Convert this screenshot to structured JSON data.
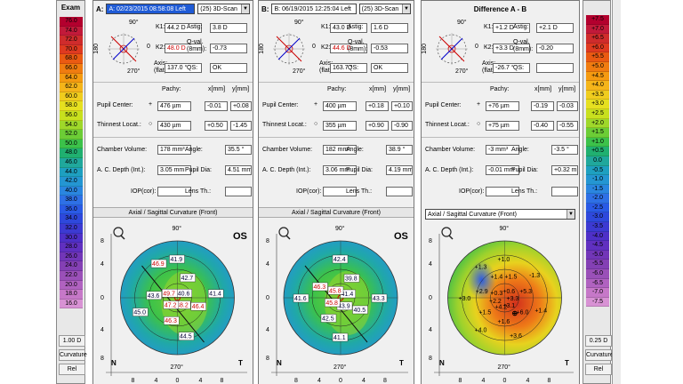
{
  "scale_left": {
    "title": "Exam",
    "values": [
      "76.0",
      "74.0",
      "72.0",
      "70.0",
      "68.0",
      "66.0",
      "64.0",
      "62.0",
      "60.0",
      "58.0",
      "56.0",
      "54.0",
      "52.0",
      "50.0",
      "48.0",
      "46.0",
      "44.0",
      "42.0",
      "40.0",
      "38.0",
      "36.0",
      "34.0",
      "32.0",
      "30.0",
      "28.0",
      "26.0",
      "24.0",
      "22.0",
      "20.0",
      "18.0",
      "16.0"
    ],
    "colors": [
      "#b3002e",
      "#c21a3a",
      "#cf2c2c",
      "#df3a20",
      "#ea5a12",
      "#f07c10",
      "#f59a10",
      "#f5b51a",
      "#f0cd1e",
      "#e6e020",
      "#c8e01e",
      "#9fd82a",
      "#6ccd36",
      "#3cc24a",
      "#20b070",
      "#20a89c",
      "#1ea0c0",
      "#2496d2",
      "#2a86e0",
      "#2e70e6",
      "#2a5ae6",
      "#2e48dc",
      "#3c3ad2",
      "#4e30c8",
      "#6030c0",
      "#7236b8",
      "#8440b4",
      "#9a50b8",
      "#b062c0",
      "#c678c8",
      "#d892d4"
    ],
    "step": "1.00 D",
    "mode": "Curvature",
    "ref": "Rel"
  },
  "scale_right": {
    "values": [
      "+7.5",
      "+7.0",
      "+6.5",
      "+6.0",
      "+5.5",
      "+5.0",
      "+4.5",
      "+4.0",
      "+3.5",
      "+3.0",
      "+2.5",
      "+2.0",
      "+1.5",
      "+1.0",
      "+0.5",
      "0.0",
      "-0.5",
      "-1.0",
      "-1.5",
      "-2.0",
      "-2.5",
      "-3.0",
      "-3.5",
      "-4.0",
      "-4.5",
      "-5.0",
      "-5.5",
      "-6.0",
      "-6.5",
      "-7.0",
      "-7.5"
    ],
    "colors": [
      "#b3002e",
      "#c21a3a",
      "#cf2c2c",
      "#df3a20",
      "#ea5a12",
      "#f07c10",
      "#f59a10",
      "#f5b51a",
      "#f0cd1e",
      "#e6e020",
      "#c8e01e",
      "#9fd82a",
      "#6ccd36",
      "#3cc24a",
      "#20b070",
      "#20a89c",
      "#1ea0c0",
      "#2496d2",
      "#2a86e0",
      "#2e70e6",
      "#2a5ae6",
      "#2e48dc",
      "#3c3ad2",
      "#4e30c8",
      "#6030c0",
      "#7236b8",
      "#8440b4",
      "#9a50b8",
      "#b062c0",
      "#c678c8",
      "#d892d4"
    ],
    "step": "0.25 D",
    "mode": "Curvature",
    "ref": "Rel"
  },
  "labels": {
    "k1": "K1:",
    "k2": "K2:",
    "astig": "Astig:",
    "qval": "Q-val.",
    "qval2": "(8mm):",
    "axis": "Axis:",
    "axis2": "(flat)",
    "qs": "QS:",
    "pachy": "Pachy:",
    "xmm": "x[mm]",
    "ymm": "y[mm]",
    "pupil": "Pupil Center:",
    "thin": "Thinnest Locat.:",
    "chamber": "Chamber Volume:",
    "angle": "Angle:",
    "acd": "A. C. Depth (Int.):",
    "pupil_dia": "Pupil Dia:",
    "iop": "IOP(cor):",
    "lens": "Lens Th.:",
    "map_title": "Axial / Sagittal Curvature (Front)",
    "os": "OS",
    "deg90": "90°",
    "deg270": "270°",
    "deg0": "0",
    "deg180": "180",
    "n": "N",
    "t": "T",
    "ticks_x": [
      "8",
      "4",
      "0",
      "4",
      "8"
    ],
    "ticks_y": [
      "8",
      "4",
      "0",
      "4",
      "8"
    ]
  },
  "panel_a": {
    "label": "A:",
    "exam": "A: 02/23/2015  08:58:08  Left",
    "scan": "(25) 3D-Scan",
    "k1": "44.2 D",
    "k2": "48.0 D",
    "astig": "3.8 D",
    "qval": "-0.73",
    "axis": "137.0 °",
    "qs": "OK",
    "pupil_pachy": "476 µm",
    "pupil_x": "-0.01",
    "pupil_y": "+0.08",
    "thin_pachy": "430 µm",
    "thin_x": "+0.50",
    "thin_y": "-1.45",
    "chamber": "178 mm³",
    "angle": "35.5 °",
    "acd": "3.05 mm",
    "pupil_dia": "4.51 mm",
    "iop": "",
    "lens": "",
    "map_values": [
      "41.9",
      "42.7",
      "40.6",
      "41.4",
      "46.4",
      "48.2",
      "44.5",
      "46.3",
      "47.2",
      "45.0",
      "43.6",
      "49.7",
      "46.9"
    ]
  },
  "panel_b": {
    "label": "B:",
    "exam": "B: 06/19/2015  12:25:04  Left",
    "scan": "(25) 3D-Scan",
    "k1": "43.0 D",
    "k2": "44.6 D",
    "astig": "1.6 D",
    "qval": "-0.53",
    "axis": "163.7 °",
    "qs": "OK",
    "pupil_pachy": "400 µm",
    "pupil_x": "+0.18",
    "pupil_y": "+0.10",
    "thin_pachy": "355 µm",
    "thin_x": "+0.90",
    "thin_y": "-0.90",
    "chamber": "182 mm³",
    "angle": "38.9 °",
    "acd": "3.06 mm",
    "pupil_dia": "4.19 mm",
    "iop": "",
    "lens": "",
    "map_values": [
      "42.4",
      "39.8",
      "41.4",
      "43.3",
      "40.5",
      "43.9",
      "41.1",
      "42.5",
      "45.8",
      "41.6",
      "46.3",
      "45.8"
    ]
  },
  "panel_diff": {
    "title": "Difference A - B",
    "k1": "+1.2 D",
    "k2": "+3.3 D",
    "astig": "+2.1 D",
    "qval": "-0.20",
    "axis": "-26.7 °",
    "qs": "",
    "pupil_pachy": "+76 µm",
    "pupil_x": "-0.19",
    "pupil_y": "-0.03",
    "thin_pachy": "+75 µm",
    "thin_x": "-0.40",
    "thin_y": "-0.55",
    "chamber": "-3 mm³",
    "angle": "-3.5 °",
    "acd": "-0.01 mm",
    "pupil_dia": "+0.32 mm",
    "iop": "",
    "lens": "",
    "map_select": "Axial / Sagittal Curvature (Front)",
    "map_values": [
      "+1.0",
      "+1.5",
      "+0.6",
      "-1.3",
      "+5.3",
      "+3.3",
      "+1.4",
      "+6.0",
      "+3.1",
      "+3.6",
      "+1.6",
      "+4.2",
      "+4.0",
      "+1.5",
      "+2.2",
      "+3.0",
      "+2.9",
      "+0.3",
      "+1.3",
      "+1.4"
    ]
  }
}
